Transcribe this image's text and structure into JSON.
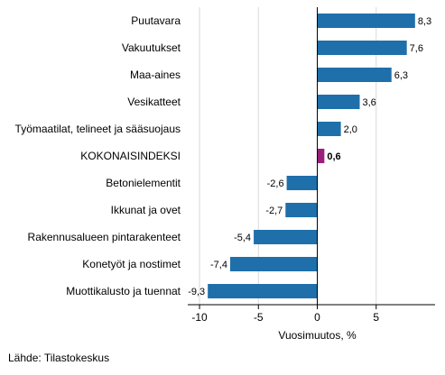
{
  "chart_data": {
    "type": "bar",
    "orientation": "horizontal",
    "categories": [
      "Puutavara",
      "Vakuutukset",
      "Maa-aines",
      "Vesikatteet",
      "Työmaatilat, telineet ja sääsuojaus",
      "KOKONAISINDEKSI",
      "Betonielementit",
      "Ikkunat ja ovet",
      "Rakennusalueen pintarakenteet",
      "Konetyöt ja nostimet",
      "Muottikalusto ja tuennat"
    ],
    "values": [
      8.3,
      7.6,
      6.3,
      3.6,
      2.0,
      0.6,
      -2.6,
      -2.7,
      -5.4,
      -7.4,
      -9.3
    ],
    "value_labels": [
      "8,3",
      "7,6",
      "6,3",
      "3,6",
      "2,0",
      "0,6",
      "-2,6",
      "-2,7",
      "-5,4",
      "-7,4",
      "-9,3"
    ],
    "highlight_category": "KOKONAISINDEKSI",
    "xlabel": "Vuosimuutos, %",
    "xlim": [
      -11,
      10
    ],
    "xticks": [
      -10,
      -5,
      0,
      5
    ],
    "xtick_labels": [
      "-10",
      "-5",
      "0",
      "5"
    ],
    "grid": "vertical",
    "colors": {
      "bar": "#1f6fab",
      "highlight": "#9c1f7b",
      "grid": "#d9d9d9",
      "axis": "#000000"
    }
  },
  "source": "Lähde: Tilastokeskus"
}
